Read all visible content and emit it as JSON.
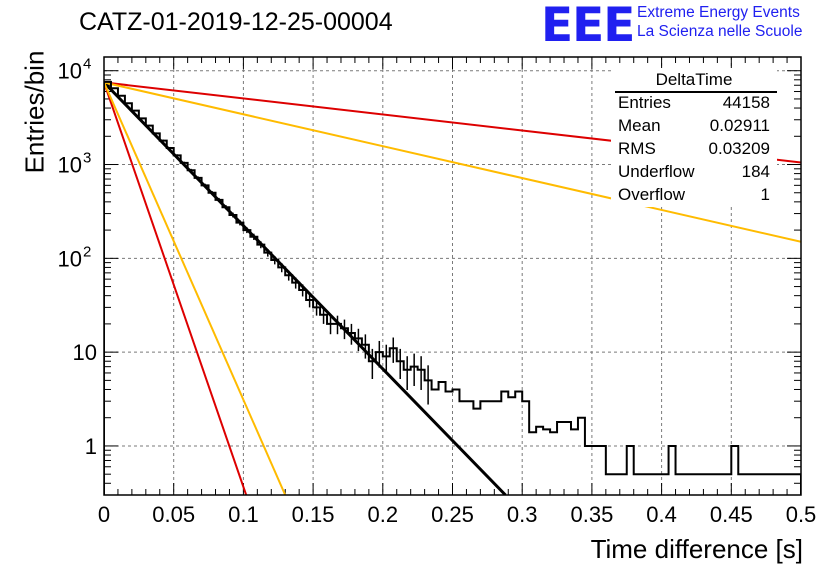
{
  "header": {
    "run_title": "CATZ-01-2019-12-25-00004"
  },
  "logo": {
    "text": "EEE",
    "line1": "Extreme Energy Events",
    "line2": "La Scienza nelle Scuole",
    "color": "#2020f0"
  },
  "stats": {
    "name": "DeltaTime",
    "rows": [
      {
        "key": "Entries",
        "value": "44158"
      },
      {
        "key": "Mean",
        "value": "0.02911"
      },
      {
        "key": "RMS",
        "value": "0.03209"
      },
      {
        "key": "Underflow",
        "value": "184"
      },
      {
        "key": "Overflow",
        "value": "1"
      }
    ]
  },
  "chart_data": {
    "type": "histogram",
    "title": "CATZ-01-2019-12-25-00004",
    "xlabel": "Time difference [s]",
    "ylabel": "Entries/bin",
    "xlim": [
      0,
      0.5
    ],
    "ylim": [
      0.3,
      14000
    ],
    "yscale": "log",
    "grid": true,
    "xticks": [
      "0",
      "0.05",
      "0.1",
      "0.15",
      "0.2",
      "0.25",
      "0.3",
      "0.35",
      "0.4",
      "0.45",
      "0.5"
    ],
    "yticks": [
      {
        "value": 1,
        "label": "1"
      },
      {
        "value": 10,
        "label": "10"
      },
      {
        "value": 100,
        "label": "10",
        "exp": "2"
      },
      {
        "value": 1000,
        "label": "10",
        "exp": "3"
      },
      {
        "value": 10000,
        "label": "10",
        "exp": "4"
      }
    ],
    "bin_width": 0.005,
    "histogram_values": [
      7600,
      6500,
      5400,
      4500,
      3750,
      3100,
      2600,
      2150,
      1800,
      1500,
      1250,
      1040,
      870,
      720,
      600,
      500,
      420,
      350,
      290,
      240,
      200,
      170,
      140,
      115,
      96,
      80,
      66,
      55,
      46,
      36,
      30,
      25,
      20,
      20,
      18,
      16,
      14,
      12,
      8,
      10,
      9,
      11,
      8,
      6.5,
      7,
      6.5,
      5,
      4,
      4.8,
      3.8,
      4,
      3,
      3,
      2.5,
      3,
      3,
      3,
      3.8,
      3.3,
      3.8,
      3,
      1.4,
      1.6,
      1.5,
      1.4,
      1.8,
      1.8,
      1.5,
      2,
      1,
      1,
      1,
      0.5,
      0.5,
      0.5,
      1,
      0.5,
      0.5,
      0.5,
      0.5,
      0.5,
      1,
      0.5,
      0.5,
      0.5,
      0.5,
      0.5,
      0.5,
      0.5,
      0.5,
      1,
      0.5,
      0.5,
      0.5,
      0.5,
      0.5,
      0.5,
      0.5,
      0.5,
      0.5
    ],
    "histogram_color": "#000000",
    "fit_lines": [
      {
        "color": "#000000",
        "width": 3,
        "points": [
          [
            0,
            7500
          ],
          [
            0.288,
            0.3
          ]
        ]
      },
      {
        "color": "#dd0000",
        "width": 2,
        "points": [
          [
            0,
            7500
          ],
          [
            0.102,
            0.3
          ]
        ]
      },
      {
        "color": "#ffbb00",
        "width": 2,
        "points": [
          [
            0,
            7500
          ],
          [
            0.13,
            0.3
          ]
        ]
      },
      {
        "color": "#dd0000",
        "width": 2,
        "points": [
          [
            0,
            7500
          ],
          [
            0.5,
            1050
          ]
        ]
      },
      {
        "color": "#ffbb00",
        "width": 2,
        "points": [
          [
            0,
            7500
          ],
          [
            0.5,
            150
          ]
        ]
      }
    ]
  }
}
